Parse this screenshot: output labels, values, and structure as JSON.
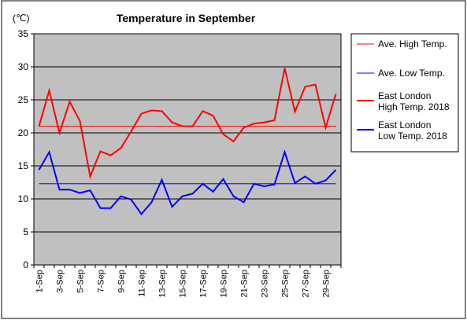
{
  "chart_data": {
    "type": "line",
    "title": "Temperature in September",
    "unit_label": "(℃)",
    "xlabel": "",
    "ylabel": "",
    "ylim": [
      0,
      35
    ],
    "yticks": [
      0,
      5,
      10,
      15,
      20,
      25,
      30,
      35
    ],
    "grid": true,
    "legend_position": "right",
    "x": [
      "1-Sep",
      "2-Sep",
      "3-Sep",
      "4-Sep",
      "5-Sep",
      "6-Sep",
      "7-Sep",
      "8-Sep",
      "9-Sep",
      "10-Sep",
      "11-Sep",
      "12-Sep",
      "13-Sep",
      "14-Sep",
      "15-Sep",
      "16-Sep",
      "17-Sep",
      "18-Sep",
      "19-Sep",
      "20-Sep",
      "21-Sep",
      "22-Sep",
      "23-Sep",
      "24-Sep",
      "25-Sep",
      "26-Sep",
      "27-Sep",
      "28-Sep",
      "29-Sep",
      "30-Sep"
    ],
    "xtick_labels": [
      "1-Sep",
      "3-Sep",
      "5-Sep",
      "7-Sep",
      "9-Sep",
      "11-Sep",
      "13-Sep",
      "15-Sep",
      "17-Sep",
      "19-Sep",
      "21-Sep",
      "23-Sep",
      "25-Sep",
      "27-Sep",
      "29-Sep"
    ],
    "series": [
      {
        "name": "Ave. High Temp.",
        "color": "#ff0000",
        "width": 1,
        "values": [
          21.0,
          21.0,
          21.0,
          21.0,
          21.0,
          21.0,
          21.0,
          21.0,
          21.0,
          21.0,
          21.0,
          21.0,
          21.0,
          21.0,
          21.0,
          21.0,
          21.0,
          21.0,
          21.0,
          21.0,
          21.0,
          21.0,
          21.0,
          21.0,
          21.0,
          21.0,
          21.0,
          21.0,
          21.0,
          21.0
        ]
      },
      {
        "name": "Ave. Low Temp.",
        "color": "#0000ff",
        "width": 1,
        "values": [
          12.3,
          12.3,
          12.3,
          12.3,
          12.3,
          12.3,
          12.3,
          12.3,
          12.3,
          12.3,
          12.3,
          12.3,
          12.3,
          12.3,
          12.3,
          12.3,
          12.3,
          12.3,
          12.3,
          12.3,
          12.3,
          12.3,
          12.3,
          12.3,
          12.3,
          12.3,
          12.3,
          12.3,
          12.3,
          12.3
        ]
      },
      {
        "name": "East London High Temp. 2018",
        "legend_lines": [
          "East London",
          "High Temp. 2018"
        ],
        "color": "#ff0000",
        "width": 2,
        "values": [
          21.0,
          26.4,
          20.0,
          24.7,
          21.8,
          13.4,
          17.2,
          16.6,
          17.7,
          20.2,
          22.9,
          23.4,
          23.3,
          21.6,
          21.0,
          21.0,
          23.3,
          22.6,
          19.8,
          18.7,
          20.8,
          21.4,
          21.6,
          21.9,
          29.8,
          23.2,
          27.0,
          27.3,
          20.8,
          25.9
        ]
      },
      {
        "name": "East London Low Temp. 2018",
        "legend_lines": [
          "East London",
          "Low Temp. 2018"
        ],
        "color": "#0000ff",
        "width": 2,
        "values": [
          14.4,
          17.1,
          11.4,
          11.4,
          10.9,
          11.3,
          8.6,
          8.6,
          10.4,
          9.9,
          7.7,
          9.5,
          12.9,
          8.8,
          10.4,
          10.8,
          12.3,
          11.1,
          13.0,
          10.4,
          9.5,
          12.3,
          11.9,
          12.2,
          17.1,
          12.4,
          13.4,
          12.3,
          12.8,
          14.4
        ]
      }
    ]
  }
}
